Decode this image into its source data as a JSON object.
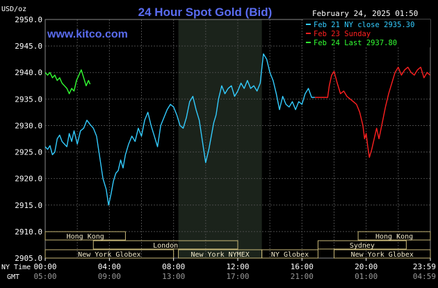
{
  "header": {
    "title": "24 Hour Spot Gold (Bid)",
    "unit": "USD/oz",
    "timestamp": "February 24, 2025 01:50",
    "site": "www.kitco.com"
  },
  "legend": [
    {
      "label": "Feb 21 NY close 2935.30",
      "color": "#33ccff"
    },
    {
      "label": "Feb 23 Sunday",
      "color": "#ff2020"
    },
    {
      "label": "Feb 24 Last 2937.80",
      "color": "#33ff33"
    }
  ],
  "time_rows": {
    "ny_label": "NY Time",
    "gmt_label": "GMT",
    "ny_ticks": [
      "00:00",
      "04:00",
      "08:00",
      "12:00",
      "16:00",
      "20:00",
      "23:59"
    ],
    "gmt_ticks": [
      "05:00",
      "09:00",
      "13:00",
      "17:00",
      "21:00",
      "01:00",
      "04:59"
    ]
  },
  "sessions": [
    {
      "label": "Hong Kong",
      "start": 0,
      "end": 5,
      "row": 0
    },
    {
      "label": "London",
      "start": 3,
      "end": 12,
      "row": 1
    },
    {
      "label": "New York Globex",
      "start": 0,
      "end": 8,
      "row": 2
    },
    {
      "label": "New York NYMEX",
      "start": 8.3,
      "end": 13.5,
      "row": 2
    },
    {
      "label": "NY Globex",
      "start": 13.5,
      "end": 17,
      "row": 2
    },
    {
      "label": "Hong Kong",
      "start": 19.5,
      "end": 24,
      "row": 0
    },
    {
      "label": "Sydney",
      "start": 17,
      "end": 22.5,
      "row": 1
    },
    {
      "label": "New York Globex",
      "start": 18,
      "end": 24,
      "row": 2
    }
  ],
  "colors": {
    "background": "#000000",
    "grid": "#4a4a4a",
    "nymex_shade": "#1b231b",
    "title": "#5a6cf0",
    "site": "#5a6cf0",
    "session_border": "#c8b878",
    "session_text": "#f0e8c8"
  },
  "chart_data": {
    "type": "line",
    "ylim": [
      2905,
      2950
    ],
    "yticks": [
      2905.0,
      2910.0,
      2915.0,
      2920.0,
      2925.0,
      2930.0,
      2935.0,
      2940.0,
      2945.0,
      2950.0
    ],
    "xlim": [
      0,
      24
    ],
    "xunit": "hours (NY time)",
    "grid": true,
    "legend_position": "top-right",
    "series": [
      {
        "name": "Feb 21 NY close 2935.30",
        "color": "#33ccff",
        "x": [
          0,
          0.15,
          0.3,
          0.45,
          0.6,
          0.75,
          0.9,
          1.05,
          1.2,
          1.35,
          1.5,
          1.65,
          1.8,
          2.0,
          2.2,
          2.4,
          2.6,
          2.8,
          3.0,
          3.2,
          3.4,
          3.6,
          3.8,
          3.95,
          4.1,
          4.25,
          4.4,
          4.55,
          4.7,
          4.85,
          5.0,
          5.2,
          5.4,
          5.6,
          5.8,
          6.0,
          6.2,
          6.4,
          6.6,
          6.8,
          7.0,
          7.2,
          7.4,
          7.6,
          7.8,
          8.0,
          8.2,
          8.4,
          8.6,
          8.8,
          9.0,
          9.2,
          9.4,
          9.6,
          9.8,
          10.0,
          10.2,
          10.35,
          10.5,
          10.65,
          10.8,
          11.0,
          11.2,
          11.4,
          11.6,
          11.8,
          12.0,
          12.2,
          12.4,
          12.6,
          12.8,
          13.0,
          13.2,
          13.4,
          13.6,
          13.8,
          14.0,
          14.2,
          14.4,
          14.6,
          14.8,
          15.0,
          15.2,
          15.4,
          15.6,
          15.8,
          16.0,
          16.2,
          16.4,
          16.6,
          16.8
        ],
        "y": [
          2926.0,
          2925.5,
          2926.2,
          2924.5,
          2925.0,
          2927.5,
          2928.2,
          2927.0,
          2926.5,
          2926.0,
          2928.5,
          2927.0,
          2929.0,
          2926.5,
          2929.0,
          2929.5,
          2931.0,
          2930.2,
          2929.5,
          2928.0,
          2924.0,
          2920.0,
          2918.0,
          2915.0,
          2917.0,
          2919.5,
          2921.0,
          2921.5,
          2923.5,
          2922.0,
          2924.5,
          2926.5,
          2928.0,
          2927.0,
          2929.5,
          2928.0,
          2931.0,
          2932.5,
          2930.0,
          2928.0,
          2926.0,
          2930.0,
          2931.5,
          2933.0,
          2934.0,
          2933.5,
          2932.0,
          2930.0,
          2929.5,
          2931.5,
          2934.5,
          2935.5,
          2933.0,
          2931.0,
          2927.0,
          2923.0,
          2925.5,
          2928.0,
          2930.5,
          2932.0,
          2935.0,
          2937.5,
          2936.0,
          2937.0,
          2937.5,
          2935.5,
          2936.5,
          2938.0,
          2937.0,
          2938.5,
          2937.0,
          2937.5,
          2936.5,
          2938.0,
          2943.5,
          2942.5,
          2940.0,
          2938.5,
          2936.0,
          2933.0,
          2935.5,
          2934.0,
          2933.5,
          2934.5,
          2933.0,
          2934.5,
          2934.0,
          2936.0,
          2937.0,
          2935.3,
          2935.3
        ]
      },
      {
        "name": "Feb 23 Sunday",
        "color": "#ff2020",
        "x": [
          16.8,
          17.6,
          17.7,
          17.85,
          18.0,
          18.2,
          18.4,
          18.6,
          18.8,
          19.0,
          19.2,
          19.4,
          19.6,
          19.8,
          19.9,
          20.0,
          20.1,
          20.2,
          20.35,
          20.5,
          20.65,
          20.8,
          21.0,
          21.2,
          21.4,
          21.6,
          21.8,
          22.0,
          22.2,
          22.4,
          22.6,
          22.8,
          23.0,
          23.2,
          23.4,
          23.6,
          23.8,
          23.98
        ],
        "y": [
          2935.3,
          2935.3,
          2937.5,
          2939.5,
          2940.2,
          2938.0,
          2936.0,
          2936.5,
          2935.5,
          2935.0,
          2934.5,
          2934.0,
          2932.5,
          2930.0,
          2927.5,
          2928.5,
          2926.0,
          2924.0,
          2925.5,
          2927.5,
          2929.5,
          2927.5,
          2930.5,
          2933.5,
          2936.0,
          2938.0,
          2940.0,
          2941.0,
          2939.5,
          2940.5,
          2941.0,
          2940.0,
          2939.5,
          2940.5,
          2941.0,
          2939.0,
          2940.0,
          2939.5
        ]
      },
      {
        "name": "Feb 24 Last 2937.80",
        "color": "#33ff33",
        "x": [
          0,
          0.15,
          0.3,
          0.45,
          0.6,
          0.75,
          0.9,
          1.05,
          1.2,
          1.35,
          1.5,
          1.65,
          1.8,
          1.95,
          2.1,
          2.25,
          2.4,
          2.55,
          2.7,
          2.8
        ],
        "y": [
          2940.0,
          2939.5,
          2940.0,
          2939.0,
          2939.5,
          2938.5,
          2939.0,
          2938.0,
          2937.5,
          2937.0,
          2936.0,
          2937.0,
          2936.5,
          2938.5,
          2939.5,
          2940.5,
          2939.0,
          2937.5,
          2938.5,
          2937.8
        ]
      }
    ]
  }
}
